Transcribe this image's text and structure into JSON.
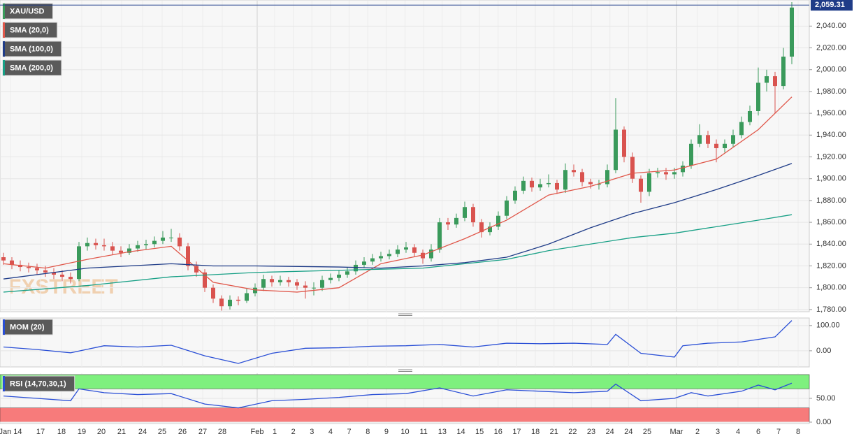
{
  "chart_data": [
    {
      "type": "candlestick",
      "title": "XAU/USD",
      "watermark": "FXSTREET",
      "up_color": "#3a9a5b",
      "down_color": "#d9534f",
      "candles": [
        [
          1828,
          1832,
          1821,
          1825
        ],
        [
          1825,
          1828,
          1817,
          1821
        ],
        [
          1821,
          1825,
          1815,
          1819
        ],
        [
          1819,
          1823,
          1814,
          1818
        ],
        [
          1818,
          1822,
          1812,
          1816
        ],
        [
          1816,
          1820,
          1810,
          1814
        ],
        [
          1814,
          1818,
          1808,
          1812
        ],
        [
          1812,
          1816,
          1806,
          1810
        ],
        [
          1810,
          1814,
          1804,
          1808
        ],
        [
          1808,
          1842,
          1806,
          1838
        ],
        [
          1838,
          1846,
          1834,
          1841
        ],
        [
          1841,
          1845,
          1835,
          1839
        ],
        [
          1839,
          1845,
          1834,
          1838
        ],
        [
          1838,
          1842,
          1830,
          1834
        ],
        [
          1834,
          1838,
          1828,
          1832
        ],
        [
          1832,
          1840,
          1830,
          1836
        ],
        [
          1836,
          1843,
          1833,
          1839
        ],
        [
          1839,
          1844,
          1835,
          1840
        ],
        [
          1840,
          1847,
          1837,
          1843
        ],
        [
          1843,
          1852,
          1840,
          1846
        ],
        [
          1846,
          1854,
          1842,
          1846
        ],
        [
          1846,
          1850,
          1834,
          1838
        ],
        [
          1838,
          1841,
          1816,
          1820
        ],
        [
          1820,
          1824,
          1810,
          1814
        ],
        [
          1814,
          1817,
          1796,
          1800
        ],
        [
          1800,
          1803,
          1786,
          1790
        ],
        [
          1790,
          1793,
          1779,
          1783
        ],
        [
          1783,
          1793,
          1780,
          1789
        ],
        [
          1789,
          1792,
          1784,
          1788
        ],
        [
          1788,
          1799,
          1786,
          1795
        ],
        [
          1795,
          1804,
          1792,
          1800
        ],
        [
          1800,
          1812,
          1797,
          1808
        ],
        [
          1808,
          1811,
          1801,
          1805
        ],
        [
          1805,
          1811,
          1802,
          1807
        ],
        [
          1807,
          1810,
          1801,
          1805
        ],
        [
          1805,
          1808,
          1798,
          1802
        ],
        [
          1802,
          1806,
          1790,
          1800
        ],
        [
          1800,
          1805,
          1793,
          1800
        ],
        [
          1800,
          1811,
          1797,
          1807
        ],
        [
          1807,
          1813,
          1804,
          1809
        ],
        [
          1809,
          1816,
          1806,
          1812
        ],
        [
          1812,
          1819,
          1809,
          1815
        ],
        [
          1815,
          1825,
          1812,
          1821
        ],
        [
          1821,
          1828,
          1818,
          1824
        ],
        [
          1824,
          1831,
          1821,
          1827
        ],
        [
          1827,
          1833,
          1824,
          1829
        ],
        [
          1829,
          1835,
          1826,
          1831
        ],
        [
          1831,
          1839,
          1828,
          1835
        ],
        [
          1835,
          1842,
          1832,
          1837
        ],
        [
          1837,
          1840,
          1828,
          1832
        ],
        [
          1832,
          1835,
          1822,
          1827
        ],
        [
          1827,
          1840,
          1824,
          1835
        ],
        [
          1835,
          1864,
          1832,
          1860
        ],
        [
          1860,
          1864,
          1853,
          1858
        ],
        [
          1858,
          1868,
          1855,
          1864
        ],
        [
          1864,
          1879,
          1861,
          1874
        ],
        [
          1874,
          1877,
          1856,
          1860
        ],
        [
          1860,
          1863,
          1846,
          1851
        ],
        [
          1851,
          1860,
          1848,
          1856
        ],
        [
          1856,
          1870,
          1853,
          1866
        ],
        [
          1866,
          1884,
          1863,
          1880
        ],
        [
          1880,
          1893,
          1877,
          1889
        ],
        [
          1889,
          1902,
          1886,
          1898
        ],
        [
          1898,
          1901,
          1888,
          1892
        ],
        [
          1892,
          1900,
          1889,
          1895
        ],
        [
          1895,
          1904,
          1892,
          1896
        ],
        [
          1896,
          1899,
          1886,
          1890
        ],
        [
          1890,
          1914,
          1887,
          1908
        ],
        [
          1908,
          1913,
          1902,
          1906
        ],
        [
          1906,
          1909,
          1893,
          1897
        ],
        [
          1897,
          1900,
          1891,
          1895
        ],
        [
          1895,
          1899,
          1890,
          1895
        ],
        [
          1895,
          1913,
          1892,
          1908
        ],
        [
          1908,
          1974,
          1905,
          1945
        ],
        [
          1945,
          1948,
          1915,
          1920
        ],
        [
          1920,
          1924,
          1896,
          1900
        ],
        [
          1900,
          1903,
          1878,
          1888
        ],
        [
          1888,
          1909,
          1884,
          1905
        ],
        [
          1905,
          1910,
          1901,
          1906
        ],
        [
          1906,
          1910,
          1899,
          1904
        ],
        [
          1904,
          1910,
          1900,
          1906
        ],
        [
          1906,
          1916,
          1902,
          1912
        ],
        [
          1912,
          1936,
          1909,
          1932
        ],
        [
          1932,
          1950,
          1929,
          1940
        ],
        [
          1940,
          1944,
          1928,
          1932
        ],
        [
          1932,
          1936,
          1915,
          1928
        ],
        [
          1928,
          1936,
          1924,
          1932
        ],
        [
          1932,
          1945,
          1929,
          1940
        ],
        [
          1940,
          1957,
          1937,
          1952
        ],
        [
          1952,
          1967,
          1949,
          1962
        ],
        [
          1962,
          2002,
          1958,
          1988
        ],
        [
          1988,
          2000,
          1980,
          1994
        ],
        [
          1994,
          1998,
          1960,
          1985
        ],
        [
          1985,
          2020,
          1982,
          2012
        ],
        [
          2012,
          2062,
          2005,
          2057
        ]
      ],
      "series": [
        {
          "name": "SMA (20,0)",
          "color": "#e0574a",
          "x": [
            0,
            5,
            10,
            15,
            20,
            25,
            30,
            35,
            40,
            45,
            50,
            55,
            60,
            65,
            70,
            75,
            80,
            85,
            90,
            94
          ],
          "values": [
            1822,
            1818,
            1826,
            1833,
            1838,
            1805,
            1798,
            1796,
            1800,
            1822,
            1830,
            1845,
            1862,
            1885,
            1893,
            1905,
            1908,
            1918,
            1945,
            1975
          ]
        },
        {
          "name": "SMA (100,0)",
          "color": "#1f3c88",
          "x": [
            0,
            10,
            20,
            25,
            30,
            40,
            45,
            50,
            55,
            60,
            65,
            70,
            75,
            80,
            85,
            90,
            94
          ],
          "values": [
            1808,
            1818,
            1822,
            1820,
            1820,
            1819,
            1818,
            1820,
            1823,
            1828,
            1840,
            1855,
            1868,
            1878,
            1890,
            1903,
            1914
          ]
        },
        {
          "name": "SMA (200,0)",
          "color": "#18a086",
          "x": [
            0,
            10,
            20,
            30,
            40,
            45,
            50,
            55,
            60,
            65,
            70,
            75,
            80,
            85,
            90,
            94
          ],
          "values": [
            1796,
            1802,
            1810,
            1814,
            1816,
            1817,
            1818,
            1822,
            1826,
            1834,
            1840,
            1846,
            1850,
            1856,
            1862,
            1867
          ]
        }
      ],
      "last_price": {
        "value": 2059.31,
        "label": "2,059.31"
      },
      "ylim": [
        1778,
        2062
      ],
      "yticks": [
        {
          "value": 1780,
          "label": "1,780.00"
        },
        {
          "value": 1800,
          "label": "1,800.00"
        },
        {
          "value": 1820,
          "label": "1,820.00"
        },
        {
          "value": 1840,
          "label": "1,840.00"
        },
        {
          "value": 1860,
          "label": "1,860.00"
        },
        {
          "value": 1880,
          "label": "1,880.00"
        },
        {
          "value": 1900,
          "label": "1,900.00"
        },
        {
          "value": 1920,
          "label": "1,920.00"
        },
        {
          "value": 1940,
          "label": "1,940.00"
        },
        {
          "value": 1960,
          "label": "1,960.00"
        },
        {
          "value": 1980,
          "label": "1,980.00"
        },
        {
          "value": 2000,
          "label": "2,000.00"
        },
        {
          "value": 2020,
          "label": "2,020.00"
        },
        {
          "value": 2040,
          "label": "2,040.00"
        }
      ],
      "categories": [
        "Jan 14",
        "17",
        "18",
        "19",
        "20",
        "21",
        "24",
        "25",
        "26",
        "27",
        "28",
        "Feb",
        "1",
        "2",
        "3",
        "4",
        "7",
        "8",
        "9",
        "10",
        "11",
        "13",
        "14",
        "15",
        "16",
        "17",
        "18",
        "21",
        "22",
        "23",
        "24",
        "24",
        "25",
        "Mar",
        "2",
        "3",
        "4",
        "6",
        "7",
        "8"
      ]
    },
    {
      "type": "line",
      "series": [
        {
          "name": "MOM (20)",
          "color": "#2a4fd6",
          "x": [
            0,
            4,
            8,
            12,
            16,
            20,
            24,
            28,
            32,
            36,
            40,
            44,
            48,
            52,
            56,
            60,
            64,
            68,
            72,
            73,
            76,
            80,
            81,
            84,
            88,
            92,
            94
          ],
          "values": [
            15,
            5,
            -8,
            20,
            15,
            22,
            -20,
            -50,
            -10,
            10,
            12,
            18,
            20,
            25,
            15,
            30,
            28,
            30,
            25,
            65,
            -10,
            -25,
            20,
            30,
            35,
            55,
            120
          ]
        }
      ],
      "ylim": [
        -64,
        130
      ],
      "yticks": [
        {
          "value": 0,
          "label": "0.00"
        },
        {
          "value": 100,
          "label": "100.00"
        }
      ]
    },
    {
      "type": "line",
      "series": [
        {
          "name": "RSI (14,70,30,1)",
          "color": "#2a4fd6",
          "x": [
            0,
            4,
            8,
            9,
            12,
            16,
            20,
            24,
            28,
            32,
            36,
            40,
            44,
            48,
            52,
            56,
            60,
            64,
            68,
            72,
            73,
            76,
            80,
            82,
            84,
            88,
            90,
            92,
            94
          ],
          "values": [
            55,
            50,
            45,
            70,
            62,
            58,
            60,
            38,
            30,
            45,
            48,
            52,
            58,
            60,
            72,
            55,
            68,
            65,
            62,
            65,
            80,
            45,
            50,
            62,
            55,
            65,
            78,
            68,
            82
          ]
        }
      ],
      "overbought": 70,
      "oversold": 30,
      "ylim": [
        0,
        100
      ],
      "yticks": [
        {
          "value": 0,
          "label": "0.00"
        },
        {
          "value": 50,
          "label": "50.00"
        }
      ]
    }
  ]
}
